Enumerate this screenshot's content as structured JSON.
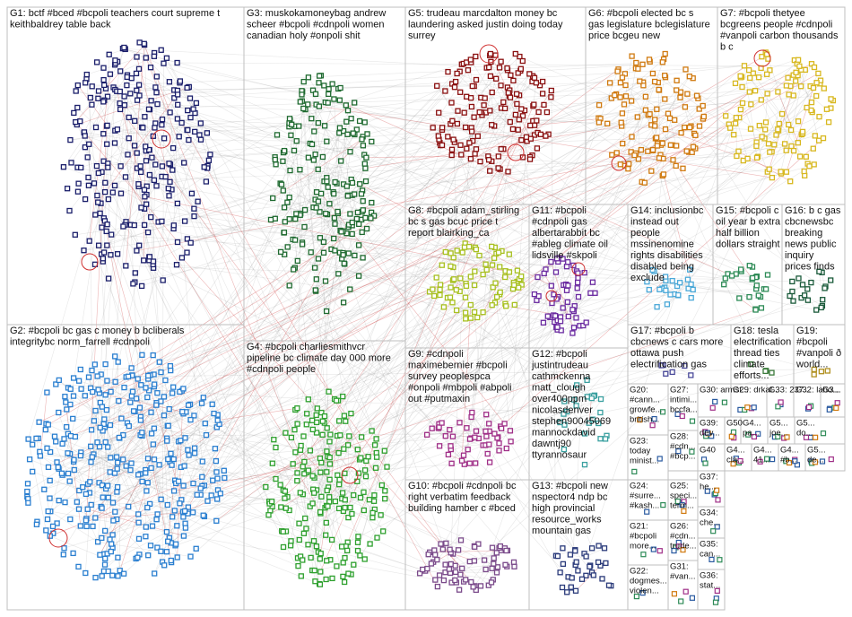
{
  "groups": [
    {
      "lines": [
        "G1: bctf #bced #bcpoli teachers court supreme t",
        "keithbaldrey table back"
      ]
    },
    {
      "lines": [
        "G3: muskokamoneybag andrew",
        "scheer #bcpoli #cdnpoli women",
        "canadian holy #onpoli shit"
      ]
    },
    {
      "lines": [
        "G5: trudeau marcdalton money bc",
        "laundering asked justin doing today",
        "surrey"
      ]
    },
    {
      "lines": [
        "G6: #bcpoli elected bc s",
        "gas legislature bclegislature",
        "price bcgeu new"
      ]
    },
    {
      "lines": [
        "G7: #bcpoli thetyee",
        "bcgreens people #cdnpoli",
        "#vanpoli carbon thousands",
        "b c"
      ]
    },
    {
      "lines": [
        "G8: #bcpoli adam_stirling",
        "bc s gas bcuc price t",
        "report blairking_ca"
      ]
    },
    {
      "lines": [
        "G11: #bcpoli",
        "#cdnpoli gas",
        "albertarabbit bc",
        "#ableg climate oil",
        "lidsville #skpoli"
      ]
    },
    {
      "lines": [
        "G14: inclusionbc",
        "instead out",
        "people",
        "mssinenomine",
        "rights disabilities",
        "disabled being",
        "exclude"
      ]
    },
    {
      "lines": [
        "G15: #bcpoli c",
        "oil year b extra",
        "half billion",
        "dollars straight"
      ]
    },
    {
      "lines": [
        "G16: b c gas",
        "cbcnewsbc",
        "breaking",
        "news public",
        "inquiry",
        "prices finds"
      ]
    },
    {
      "lines": [
        "G2: #bcpoli bc gas c money b bcliberals",
        "integritybc norm_farrell #cdnpoli"
      ]
    },
    {
      "lines": [
        "G4: #bcpoli charliesmithvcr",
        "pipeline bc climate day 000 more",
        "#cdnpoli people"
      ]
    },
    {
      "lines": [
        "G9: #cdnpoli",
        "maximebernier #bcpoli",
        "survey peoplespca",
        "#onpoli #mbpoli #abpoli",
        "out #putmaxin"
      ]
    },
    {
      "lines": [
        "G12: #bcpoli",
        "justintrudeau",
        "cathmckenna",
        "matt_clough",
        "over400ppm",
        "nicolasdenver",
        "stephen90045069",
        "mannockdavid",
        "dawntj90",
        "ttyrannosaur"
      ]
    },
    {
      "lines": [
        "G10: #bcpoli #cdnpoli bc",
        "right verbatim feedback",
        "building hamber c #bced"
      ]
    },
    {
      "lines": [
        "G13: #bcpoli new",
        "nspector4 ndp bc",
        "high provincial",
        "resource_works",
        "mountain gas"
      ]
    },
    {
      "lines": [
        "G17: #bcpoli b",
        "cbcnews c cars more",
        "ottawa push",
        "electrification gas"
      ]
    },
    {
      "lines": [
        "G18: tesla",
        "electrification",
        "thread ties",
        "climate",
        "efforts..."
      ]
    },
    {
      "lines": [
        "G19:",
        "#bcpoli",
        "#vanpoli ð",
        "world..."
      ]
    }
  ],
  "small_groups": [
    {
      "lines": [
        "G20:",
        "#cann...",
        "growfe...",
        "british..."
      ]
    },
    {
      "lines": [
        "G27:",
        "intimi...",
        "bccfa..."
      ]
    },
    {
      "lines": [
        "G30: armst..."
      ]
    },
    {
      "lines": [
        "G29: drkat..."
      ]
    },
    {
      "lines": [
        "G33: 237..."
      ]
    },
    {
      "lines": [
        "G32: labo..."
      ]
    },
    {
      "lines": [
        "G3..."
      ]
    },
    {
      "lines": [
        "G23:",
        "today",
        "minist..."
      ]
    },
    {
      "lines": [
        "G28:",
        "#cdn...",
        "#bcp..."
      ]
    },
    {
      "lines": [
        "G39:",
        "dev..."
      ]
    },
    {
      "lines": [
        "G50"
      ]
    },
    {
      "lines": [
        "G4...",
        "pa..."
      ]
    },
    {
      "lines": [
        "G5...",
        "joe..."
      ]
    },
    {
      "lines": [
        "G5...",
        "do..."
      ]
    },
    {
      "lines": [
        "G40"
      ]
    },
    {
      "lines": [
        "G4...",
        "cla..."
      ]
    },
    {
      "lines": [
        "G4...",
        "41..."
      ]
    },
    {
      "lines": [
        "G4...",
        "#b..."
      ]
    },
    {
      "lines": [
        "G5...",
        "de..."
      ]
    },
    {
      "lines": [
        "G24:",
        "#surre...",
        "#kash..."
      ]
    },
    {
      "lines": [
        "G25:",
        "speci...",
        "term..."
      ]
    },
    {
      "lines": [
        "G37:",
        "he..."
      ]
    },
    {
      "lines": [
        "G21:",
        "#bcpoli",
        "more..."
      ]
    },
    {
      "lines": [
        "G26:",
        "#cdn...",
        "trude..."
      ]
    },
    {
      "lines": [
        "G34:",
        "che..."
      ]
    },
    {
      "lines": [
        "G35:",
        "can..."
      ]
    },
    {
      "lines": [
        "G22:",
        "dogmes...",
        "violen..."
      ]
    },
    {
      "lines": [
        "G31:",
        "#van..."
      ]
    },
    {
      "lines": [
        "G36:",
        "stat..."
      ]
    }
  ]
}
